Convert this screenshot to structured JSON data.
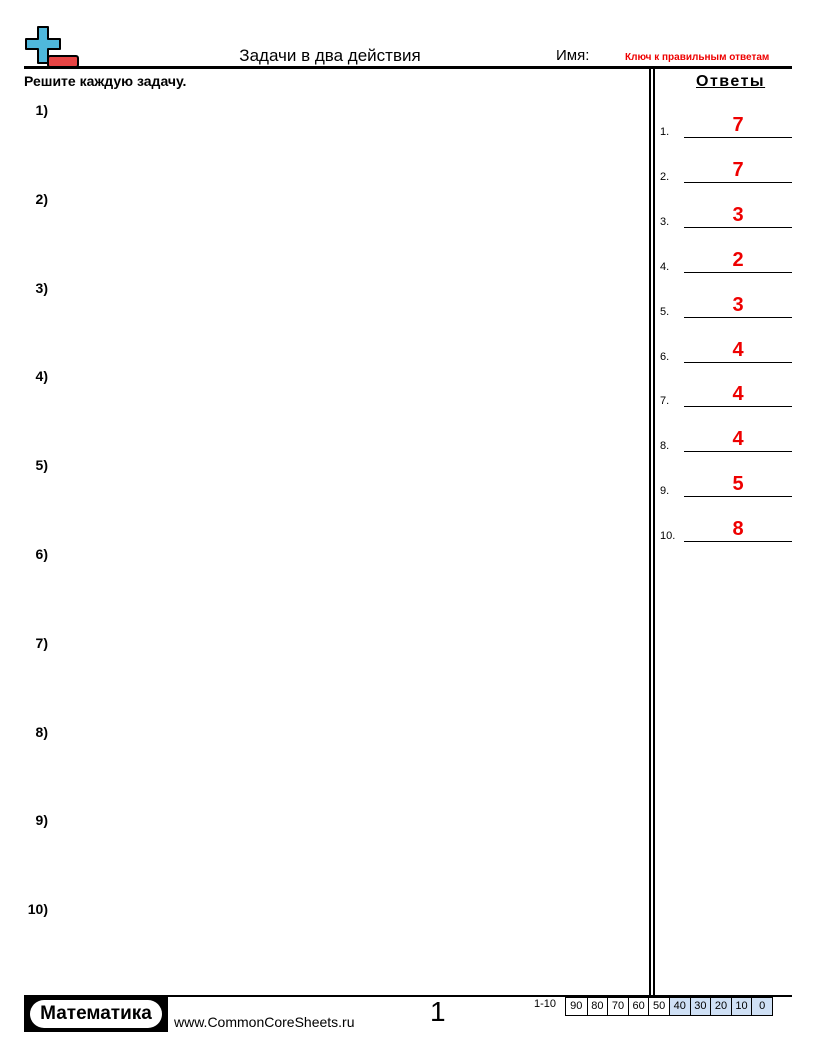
{
  "header": {
    "title": "Задачи в два действия",
    "name_label": "Имя:",
    "answer_key_label": "Ключ к правильным ответам"
  },
  "instructions": "Решите каждую задачу.",
  "problems": [
    "1)",
    "2)",
    "3)",
    "4)",
    "5)",
    "6)",
    "7)",
    "8)",
    "9)",
    "10)"
  ],
  "answers": {
    "title": "Ответы",
    "items": [
      {
        "n": "1.",
        "v": "7"
      },
      {
        "n": "2.",
        "v": "7"
      },
      {
        "n": "3.",
        "v": "3"
      },
      {
        "n": "4.",
        "v": "2"
      },
      {
        "n": "5.",
        "v": "3"
      },
      {
        "n": "6.",
        "v": "4"
      },
      {
        "n": "7.",
        "v": "4"
      },
      {
        "n": "8.",
        "v": "4"
      },
      {
        "n": "9.",
        "v": "5"
      },
      {
        "n": "10.",
        "v": "8"
      }
    ]
  },
  "footer": {
    "brand": "Математика",
    "site": "www.CommonCoreSheets.ru",
    "page": "1",
    "score_label": "1-10",
    "scores": [
      "90",
      "80",
      "70",
      "60",
      "50",
      "40",
      "30",
      "20",
      "10",
      "0"
    ]
  },
  "colors": {
    "accent": "#e00000",
    "logo_plus": "#4fb8dc",
    "logo_minus": "#e84545",
    "score_fill": "#cfe0f5"
  }
}
